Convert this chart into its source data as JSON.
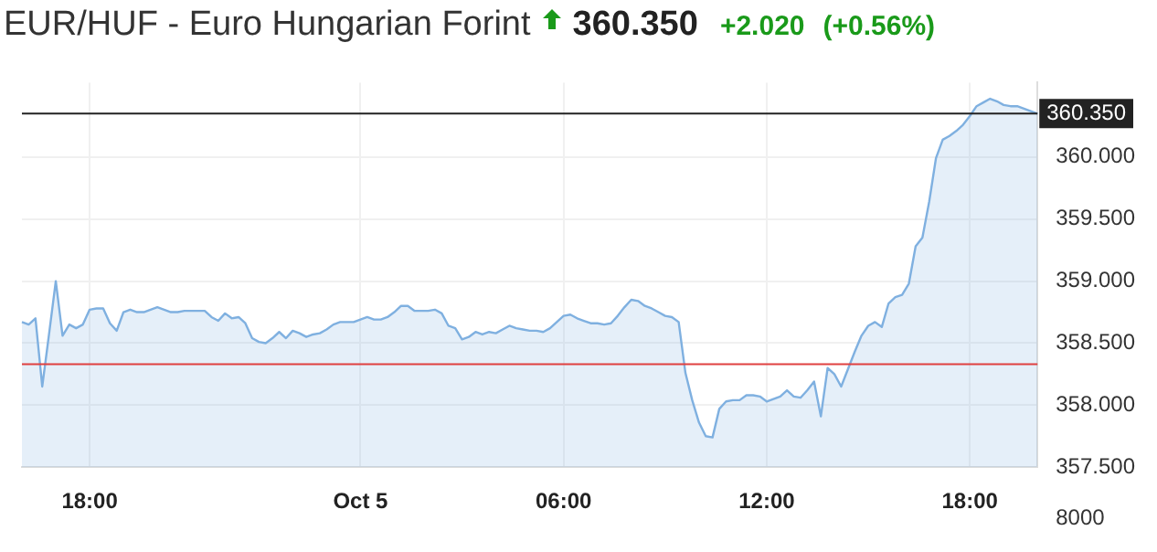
{
  "chart_data": {
    "type": "area",
    "title": "EUR/HUF - Euro Hungarian Forint",
    "subtitle": "360.350",
    "annotations": [
      "+2.020",
      "(+0.56%)",
      "8000"
    ],
    "categories": [
      null,
      null,
      null,
      null,
      null,
      null,
      null,
      null,
      null,
      null,
      "18:00",
      null,
      null,
      null,
      null,
      null,
      null,
      null,
      null,
      null,
      null,
      null,
      null,
      null,
      null,
      null,
      null,
      null,
      null,
      null,
      null,
      null,
      null,
      null,
      null,
      null,
      null,
      null,
      null,
      null,
      null,
      null,
      null,
      null,
      null,
      null,
      null,
      null,
      null,
      null,
      "Oct 5",
      null,
      null,
      null,
      null,
      null,
      null,
      null,
      null,
      null,
      null,
      null,
      null,
      null,
      null,
      null,
      null,
      null,
      null,
      null,
      null,
      null,
      null,
      null,
      null,
      null,
      null,
      null,
      null,
      null,
      "06:00",
      null,
      null,
      null,
      null,
      null,
      null,
      null,
      null,
      null,
      null,
      null,
      null,
      null,
      null,
      null,
      null,
      null,
      null,
      null,
      null,
      null,
      null,
      null,
      null,
      null,
      null,
      null,
      null,
      null,
      "12:00",
      null,
      null,
      null,
      null,
      null,
      null,
      null,
      null,
      null,
      null,
      null,
      null,
      null,
      null,
      null,
      null,
      null,
      null,
      null,
      null,
      null,
      null,
      null,
      null,
      null,
      null,
      null,
      null,
      null,
      "18:00",
      null,
      null,
      null,
      null,
      null,
      null,
      null,
      null,
      null,
      null
    ],
    "series": [
      {
        "color": "#7fb0e0",
        "values": [
          358.67,
          358.65,
          358.7,
          358.15,
          358.57,
          359.0,
          358.56,
          358.65,
          358.62,
          358.65,
          358.77,
          358.78,
          358.78,
          358.66,
          358.6,
          358.75,
          358.77,
          358.75,
          358.75,
          358.77,
          358.79,
          358.77,
          358.75,
          358.75,
          358.76,
          358.76,
          358.76,
          358.76,
          358.71,
          358.68,
          358.74,
          358.7,
          358.71,
          358.66,
          358.54,
          358.51,
          358.5,
          358.54,
          358.59,
          358.54,
          358.6,
          358.58,
          358.55,
          358.57,
          358.58,
          358.61,
          358.65,
          358.67,
          358.67,
          358.67,
          358.69,
          358.71,
          358.69,
          358.69,
          358.71,
          358.75,
          358.8,
          358.8,
          358.76,
          358.76,
          358.76,
          358.77,
          358.74,
          358.64,
          358.62,
          358.53,
          358.55,
          358.59,
          358.57,
          358.59,
          358.58,
          358.61,
          358.64,
          358.62,
          358.61,
          358.6,
          358.6,
          358.59,
          358.62,
          358.67,
          358.72,
          358.73,
          358.7,
          358.68,
          358.66,
          358.66,
          358.65,
          358.66,
          358.72,
          358.79,
          358.85,
          358.84,
          358.8,
          358.78,
          358.75,
          358.72,
          358.71,
          358.67,
          358.26,
          358.04,
          357.86,
          357.75,
          357.74,
          357.97,
          358.03,
          358.04,
          358.04,
          358.08,
          358.08,
          358.07,
          358.03,
          358.05,
          358.07,
          358.12,
          358.07,
          358.06,
          358.12,
          358.19,
          357.91,
          358.3,
          358.25,
          358.15,
          358.29,
          358.43,
          358.56,
          358.64,
          358.67,
          358.63,
          358.82,
          358.87,
          358.89,
          358.98,
          359.28,
          359.35,
          359.64,
          359.99,
          360.14,
          360.17,
          360.21,
          360.26,
          360.33,
          360.41,
          360.44,
          360.47,
          360.45,
          360.42,
          360.41,
          360.41,
          360.39,
          360.37,
          360.35
        ]
      }
    ],
    "ylim": [
      357.5,
      360.6
    ],
    "yticks": [
      {
        "value": 357.5,
        "label": "357.500"
      },
      {
        "value": 358,
        "label": "358.000"
      },
      {
        "value": 358.5,
        "label": "358.500"
      },
      {
        "value": 359,
        "label": "359.000"
      },
      {
        "value": 359.5,
        "label": "359.500"
      },
      {
        "value": 360,
        "label": "360.000"
      }
    ],
    "ref_lines": [
      {
        "axis": "y",
        "value": 360.35,
        "label": "360.350",
        "color": "#222222"
      },
      {
        "axis": "y",
        "value": 358.33,
        "color": "#e04040"
      }
    ],
    "grid": true,
    "legend": false,
    "marker": "none"
  }
}
